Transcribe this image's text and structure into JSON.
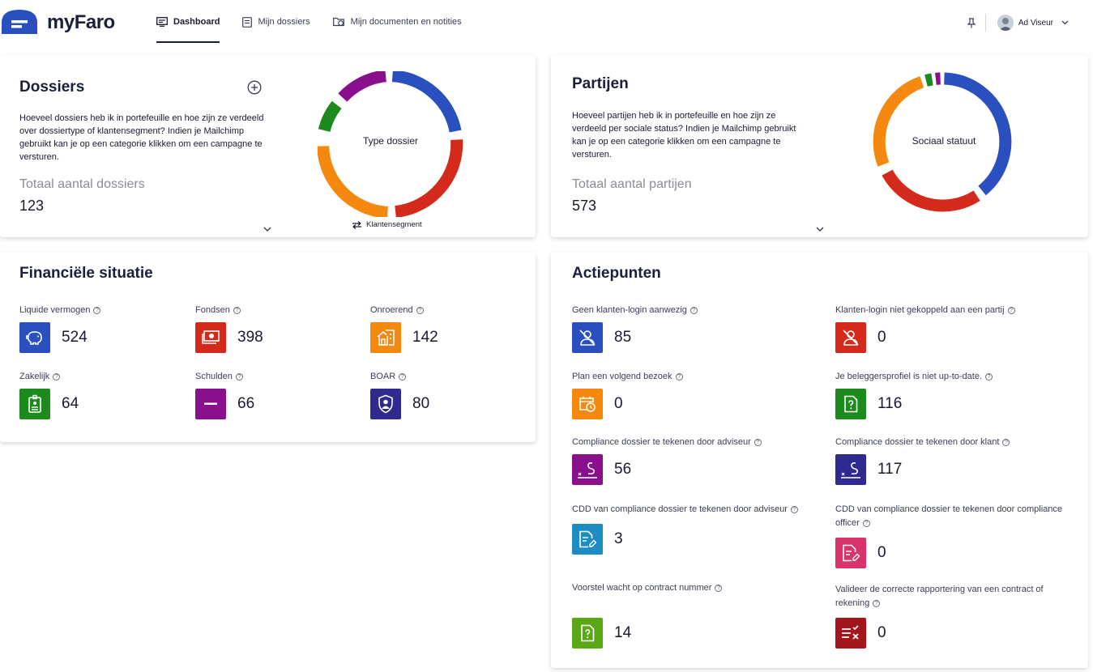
{
  "app": {
    "name": "myFaro"
  },
  "nav": {
    "dashboard": "Dashboard",
    "dossiers": "Mijn dossiers",
    "documents": "Mijn documenten en notities"
  },
  "user": {
    "name": "Ad Viseur"
  },
  "dossiers": {
    "title": "Dossiers",
    "description": "Hoeveel dossiers heb ik in portefeuille en hoe zijn ze verdeeld over dossiertype of klantensegment? Indien je Mailchimp gebruikt kan je op een categorie klikken om een campagne te versturen.",
    "total_label": "Totaal aantal dossiers",
    "total_value": "123",
    "donut_label": "Type dossier",
    "switch_label": "Klantensegment"
  },
  "partijen": {
    "title": "Partijen",
    "description": "Hoeveel partijen heb ik in portefeuille en hoe zijn ze verdeeld per sociale status? Indien je Mailchimp gebruikt kan je op een categorie klikken om een campagne te versturen.",
    "total_label": "Totaal aantal partijen",
    "total_value": "573",
    "donut_label": "Sociaal statuut"
  },
  "financieel": {
    "title": "Financiële situatie",
    "items": [
      {
        "label": "Liquide vermogen",
        "value": "524",
        "color": "#2a4fbf",
        "icon": "piggy-bank-icon"
      },
      {
        "label": "Fondsen",
        "value": "398",
        "color": "#d42a1c",
        "icon": "money-icon"
      },
      {
        "label": "Onroerend",
        "value": "142",
        "color": "#f5890f",
        "icon": "house-icon"
      },
      {
        "label": "Zakelijk",
        "value": "64",
        "color": "#1d8a1d",
        "icon": "badge-icon"
      },
      {
        "label": "Schulden",
        "value": "66",
        "color": "#8a0f8c",
        "icon": "minus-icon"
      },
      {
        "label": "BOAR",
        "value": "80",
        "color": "#2e2a8f",
        "icon": "shield-user-icon"
      }
    ]
  },
  "actiepunten": {
    "title": "Actiepunten",
    "items": [
      {
        "label": "Geen klanten-login aanwezig",
        "value": "85",
        "color": "#2a4fbf",
        "icon": "user-off-icon"
      },
      {
        "label": "Klanten-login niet gekoppeld aan een partij",
        "value": "0",
        "color": "#d42a1c",
        "icon": "user-off-icon"
      },
      {
        "label": "Plan een volgend bezoek",
        "value": "0",
        "color": "#f5890f",
        "icon": "calendar-clock-icon"
      },
      {
        "label": "Je beleggersprofiel is niet up-to-date.",
        "value": "116",
        "color": "#1d8a1d",
        "icon": "document-question-icon"
      },
      {
        "label": "Compliance dossier te tekenen door adviseur",
        "value": "56",
        "color": "#8a0f8c",
        "icon": "signature-icon"
      },
      {
        "label": "Compliance dossier te tekenen door klant",
        "value": "117",
        "color": "#2e2a8f",
        "icon": "signature-icon"
      },
      {
        "label": "CDD van compliance dossier te tekenen door adviseur",
        "value": "3",
        "color": "#1e8bc3",
        "icon": "document-edit-icon"
      },
      {
        "label": "CDD van compliance dossier te tekenen door compliance officer",
        "value": "0",
        "color": "#d8336a",
        "icon": "document-edit-icon"
      },
      {
        "label": "Voorstel wacht op contract nummer",
        "value": "14",
        "color": "#5aa818",
        "icon": "document-question-icon"
      },
      {
        "label": "Valideer de correcte rapportering van een contract of rekening",
        "value": "0",
        "color": "#a3161c",
        "icon": "list-check-x-icon"
      }
    ]
  }
}
